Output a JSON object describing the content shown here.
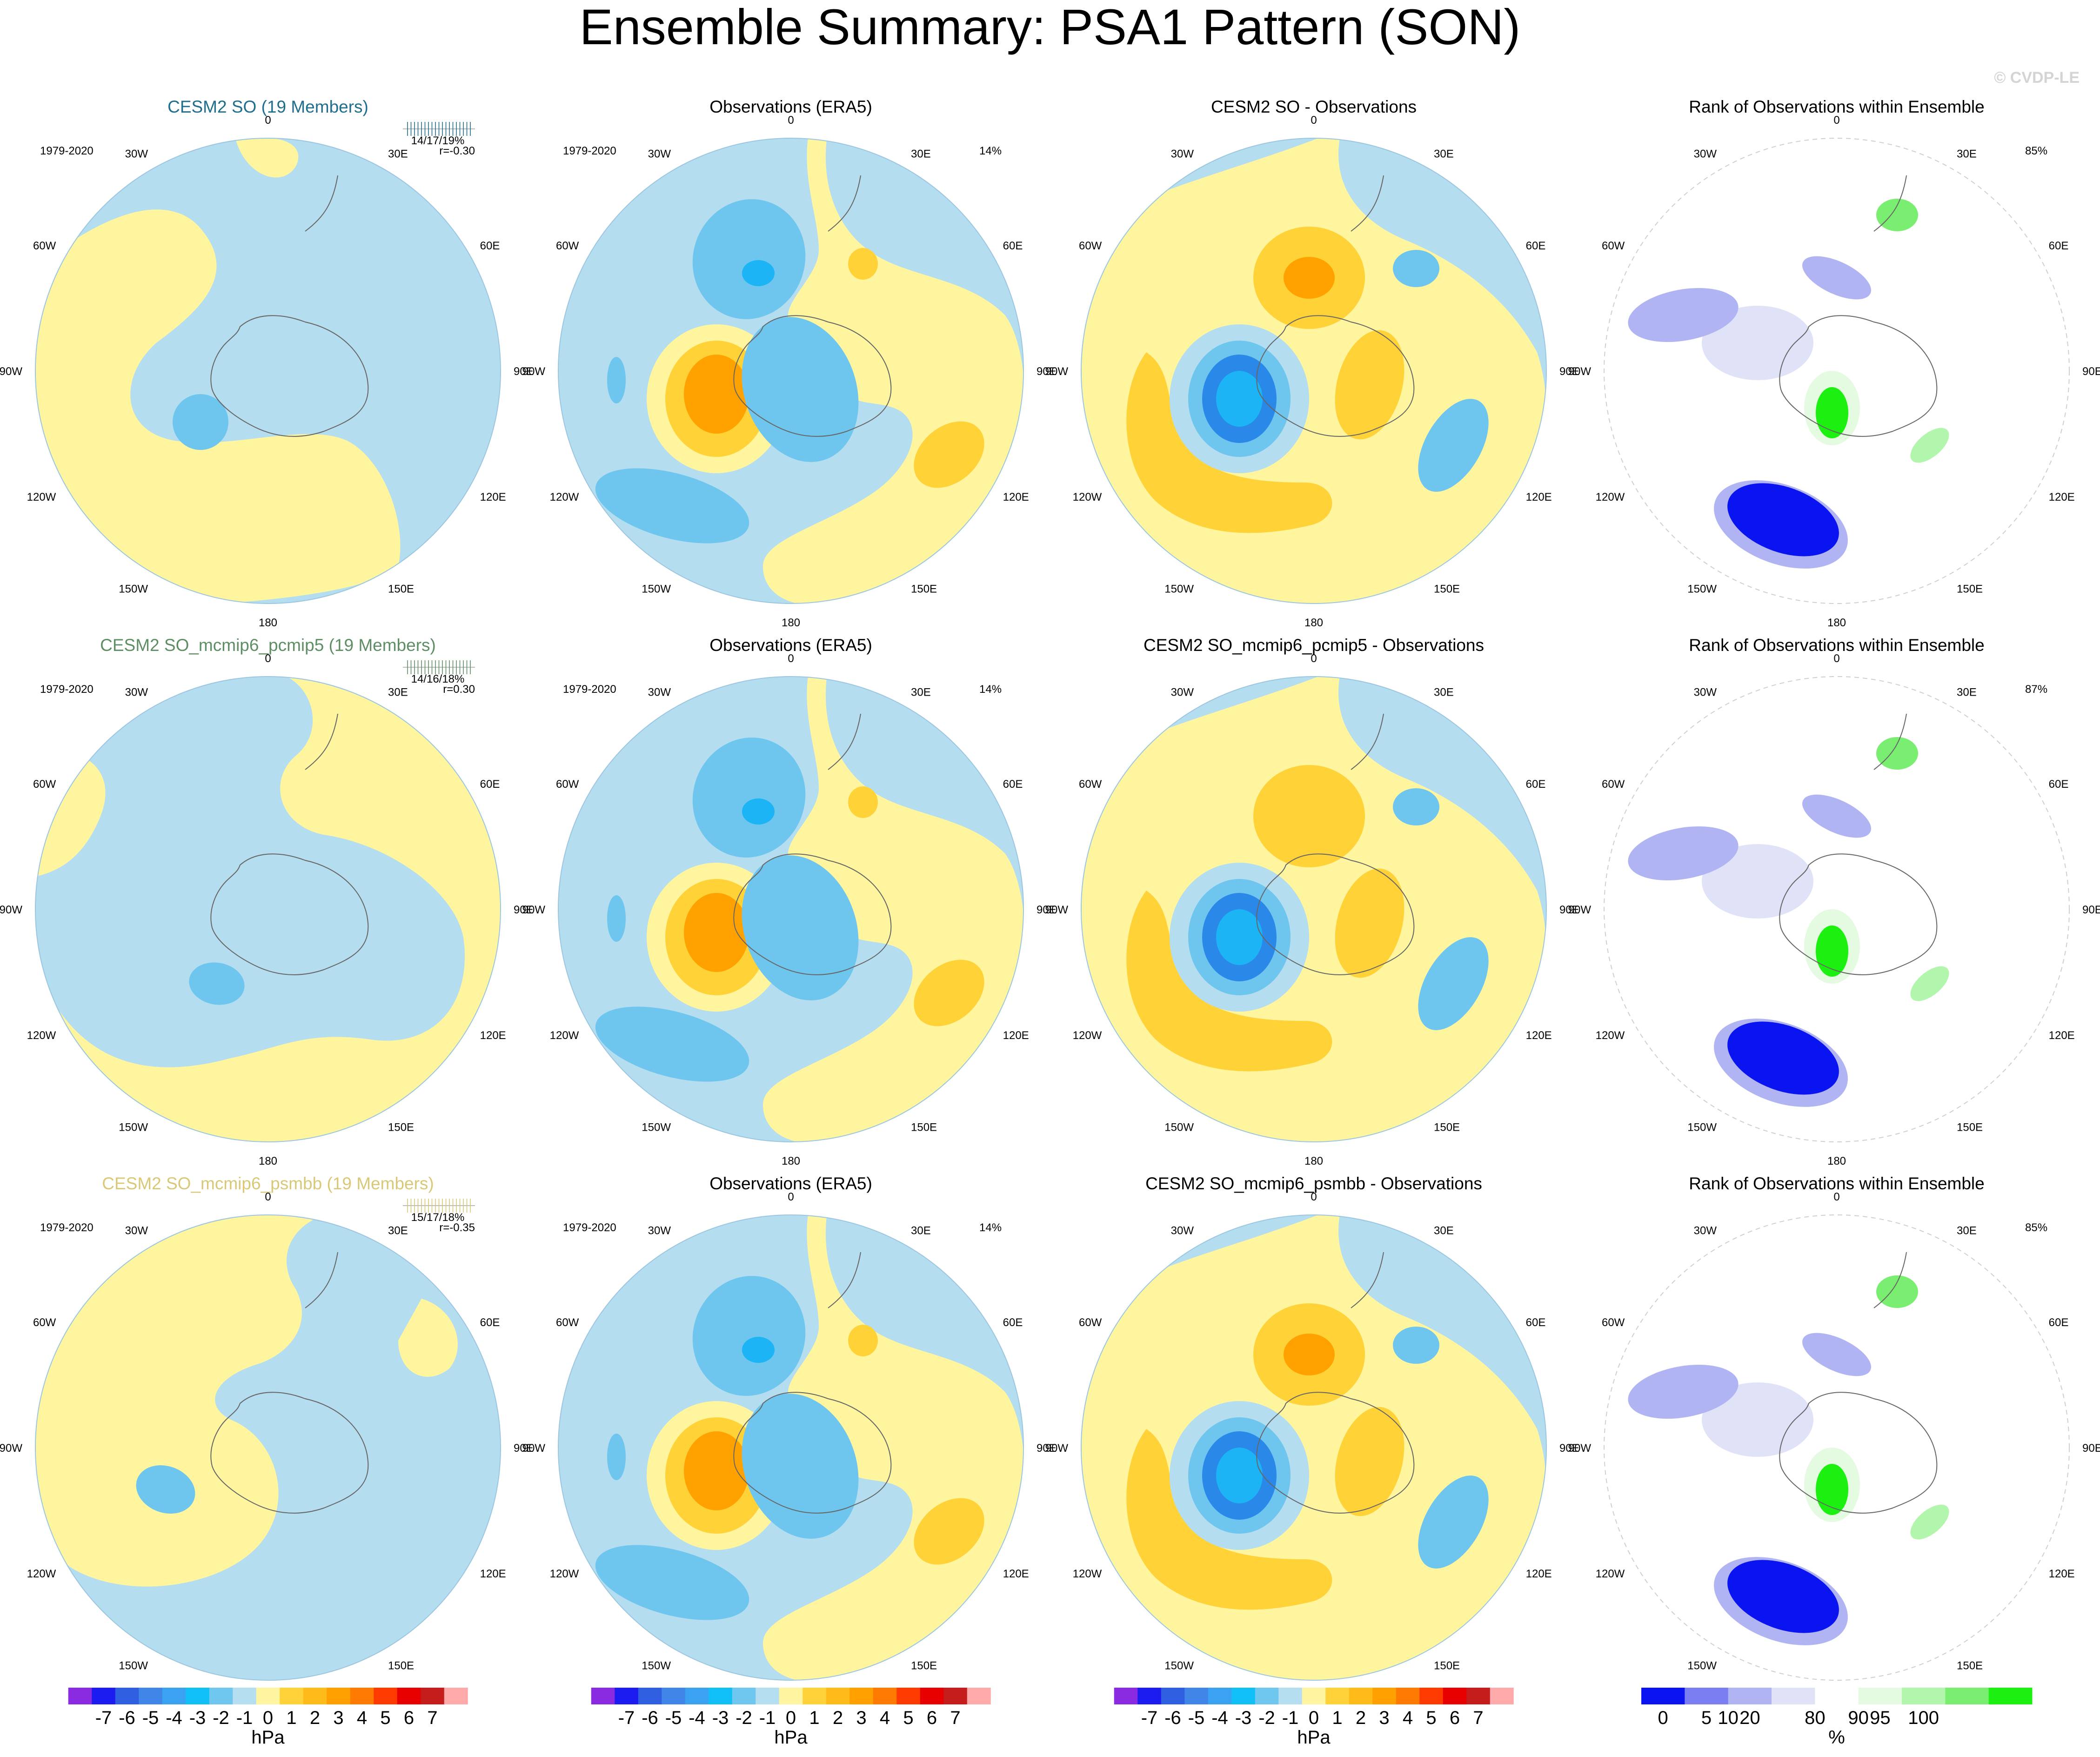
{
  "page": {
    "title": "Ensemble Summary: PSA1 Pattern (SON)",
    "watermark": "© CVDP-LE"
  },
  "chart_data": {
    "type": "polar-contour-map-grid",
    "units": [
      "hPa",
      "%"
    ],
    "longitude_labels": [
      "0",
      "30E",
      "60E",
      "90E",
      "120E",
      "150E",
      "180",
      "150W",
      "120W",
      "90W",
      "60W",
      "30W"
    ],
    "rows": [
      {
        "model": {
          "title": "CESM2 SO (19 Members)",
          "title_color": "#1f6e8c",
          "period": "1979-2020",
          "stats": "14/17/19%",
          "corr": "r=-0.30"
        },
        "observations": {
          "title": "Observations (ERA5)",
          "period": "1979-2020",
          "pct": "14%"
        },
        "difference": {
          "title": "CESM2 SO - Observations"
        },
        "rank": {
          "title": "Rank of Observations within Ensemble",
          "pct": "85%"
        }
      },
      {
        "model": {
          "title": "CESM2 SO_mcmip6_pcmip5 (19 Members)",
          "title_color": "#5e8e63",
          "period": "1979-2020",
          "stats": "14/16/18%",
          "corr": "r=0.30"
        },
        "observations": {
          "title": "Observations (ERA5)",
          "period": "1979-2020",
          "pct": "14%"
        },
        "difference": {
          "title": "CESM2 SO_mcmip6_pcmip5 - Observations"
        },
        "rank": {
          "title": "Rank of Observations within Ensemble",
          "pct": "87%"
        }
      },
      {
        "model": {
          "title": "CESM2 SO_mcmip6_psmbb (19 Members)",
          "title_color": "#d8c878",
          "period": "1979-2020",
          "stats": "15/17/18%",
          "corr": "r=-0.35"
        },
        "observations": {
          "title": "Observations (ERA5)",
          "period": "1979-2020",
          "pct": "14%"
        },
        "difference": {
          "title": "CESM2 SO_mcmip6_psmbb - Observations"
        },
        "rank": {
          "title": "Rank of Observations within Ensemble",
          "pct": "85%"
        }
      }
    ],
    "colorbars": [
      {
        "label": "hPa",
        "tick_labels": [
          "-7",
          "-6",
          "-5",
          "-4",
          "-3",
          "-2",
          "-1",
          "0",
          "1",
          "2",
          "3",
          "4",
          "5",
          "6",
          "7"
        ],
        "colors": [
          "#8a2be2",
          "#1c1cf0",
          "#2f5fe0",
          "#3f86e8",
          "#3aa2f0",
          "#0fbff5",
          "#6fc6ee",
          "#b5dff0",
          "#fff5a0",
          "#ffd23a",
          "#ffbb1a",
          "#ffa000",
          "#ff7a00",
          "#ff3a00",
          "#e80000",
          "#c51c1c",
          "#ffaaaa"
        ]
      },
      {
        "label": "hPa",
        "tick_labels": [
          "-7",
          "-6",
          "-5",
          "-4",
          "-3",
          "-2",
          "-1",
          "0",
          "1",
          "2",
          "3",
          "4",
          "5",
          "6",
          "7"
        ],
        "colors": [
          "#8a2be2",
          "#1c1cf0",
          "#2f5fe0",
          "#3f86e8",
          "#3aa2f0",
          "#0fbff5",
          "#6fc6ee",
          "#b5dff0",
          "#fff5a0",
          "#ffd23a",
          "#ffbb1a",
          "#ffa000",
          "#ff7a00",
          "#ff3a00",
          "#e80000",
          "#c51c1c",
          "#ffaaaa"
        ]
      },
      {
        "label": "hPa",
        "tick_labels": [
          "-7",
          "-6",
          "-5",
          "-4",
          "-3",
          "-2",
          "-1",
          "0",
          "1",
          "2",
          "3",
          "4",
          "5",
          "6",
          "7"
        ],
        "colors": [
          "#8a2be2",
          "#1c1cf0",
          "#2f5fe0",
          "#3f86e8",
          "#3aa2f0",
          "#0fbff5",
          "#6fc6ee",
          "#b5dff0",
          "#fff5a0",
          "#ffd23a",
          "#ffbb1a",
          "#ffa000",
          "#ff7a00",
          "#ff3a00",
          "#e80000",
          "#c51c1c",
          "#ffaaaa"
        ]
      },
      {
        "label": "%",
        "tick_labels": [
          "0",
          "5",
          "10",
          "20",
          "80",
          "90",
          "95",
          "100"
        ],
        "tick_values": [
          0,
          5,
          10,
          20,
          80,
          90,
          95,
          100
        ],
        "colors": [
          "#0a14f0",
          "#7a7ef0",
          "#b0b4f2",
          "#e0e2f8",
          "#ffffff",
          "#e4fbe2",
          "#b2f5ac",
          "#7aee70",
          "#1cf010"
        ]
      }
    ]
  }
}
